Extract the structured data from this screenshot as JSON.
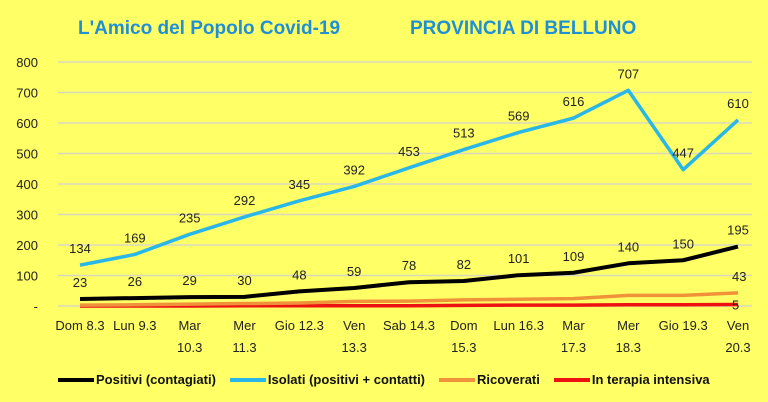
{
  "title_left": "L'Amico del Popolo Covid-19",
  "title_right": "PROVINCIA DI BELLUNO",
  "chart_data": {
    "type": "line",
    "categories": [
      [
        "Dom 8.3"
      ],
      [
        "Lun 9.3"
      ],
      [
        "Mar",
        "10.3"
      ],
      [
        "Mer",
        "11.3"
      ],
      [
        "Gio 12.3"
      ],
      [
        "Ven",
        "13.3"
      ],
      [
        "Sab 14.3"
      ],
      [
        "Dom",
        "15.3"
      ],
      [
        "Lun 16.3"
      ],
      [
        "Mar",
        "17.3"
      ],
      [
        "Mer",
        "18.3"
      ],
      [
        "Gio 19.3"
      ],
      [
        "Ven",
        "20.3"
      ]
    ],
    "ylim": [
      0,
      800
    ],
    "yticks": [
      0,
      100,
      200,
      300,
      400,
      500,
      600,
      700,
      800
    ],
    "ytick_labels": [
      "-",
      "100",
      "200",
      "300",
      "400",
      "500",
      "600",
      "700",
      "800"
    ],
    "grid": true,
    "legend_position": "bottom",
    "series": [
      {
        "name": "Positivi (contagiati)",
        "color": "#000000",
        "values": [
          23,
          26,
          29,
          30,
          48,
          59,
          78,
          82,
          101,
          109,
          140,
          150,
          195
        ],
        "labels": "all"
      },
      {
        "name": "Isolati (positivi + contatti)",
        "color": "#29b6e8",
        "values": [
          134,
          169,
          235,
          292,
          345,
          392,
          453,
          513,
          569,
          616,
          707,
          447,
          610
        ],
        "labels": "all"
      },
      {
        "name": "Ricoverati",
        "color": "#f0923a",
        "values": [
          3,
          4,
          6,
          8,
          10,
          15,
          16,
          20,
          22,
          24,
          35,
          35,
          43
        ],
        "labels": "last"
      },
      {
        "name": "In terapia intensiva",
        "color": "#ee1111",
        "values": [
          0,
          0,
          0,
          1,
          1,
          1,
          1,
          2,
          3,
          3,
          4,
          4,
          5
        ],
        "labels": "last"
      }
    ]
  }
}
